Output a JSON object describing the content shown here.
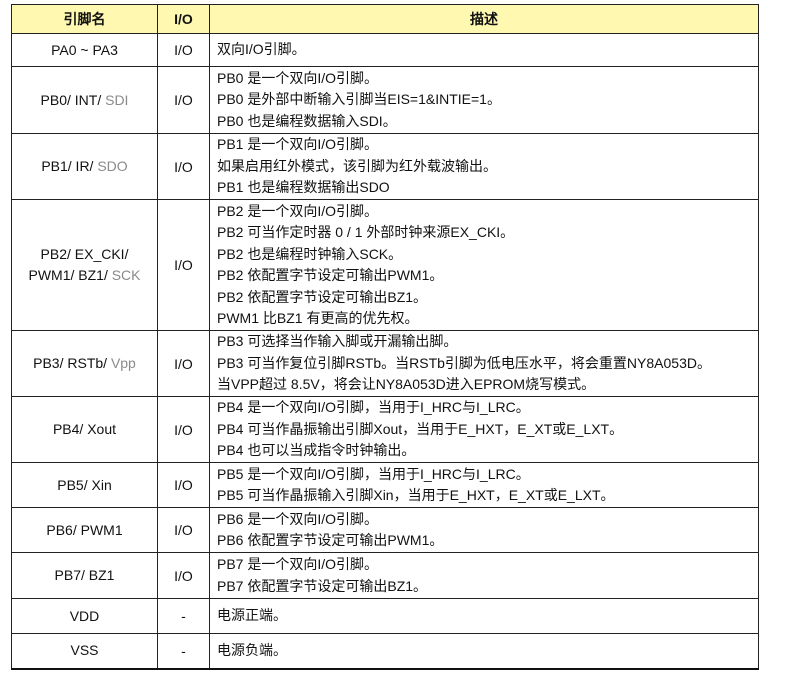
{
  "header": {
    "pin": "引脚名",
    "io": "I/O",
    "desc": "描述"
  },
  "rows": [
    {
      "pin": [
        {
          "t": "PA0 ~ PA3",
          "gray": false
        }
      ],
      "io": "I/O",
      "desc": [
        "双向I/O引脚。"
      ]
    },
    {
      "pin": [
        {
          "t": "PB0/ INT/ ",
          "gray": false
        },
        {
          "t": "SDI",
          "gray": true
        }
      ],
      "io": "I/O",
      "desc": [
        "PB0 是一个双向I/O引脚。",
        "PB0 是外部中断输入引脚当EIS=1&INTIE=1。",
        "PB0 也是编程数据输入SDI。"
      ]
    },
    {
      "pin": [
        {
          "t": "PB1/ IR/ ",
          "gray": false
        },
        {
          "t": "SDO",
          "gray": true
        }
      ],
      "io": "I/O",
      "desc": [
        "PB1 是一个双向I/O引脚。",
        "如果启用红外模式，该引脚为红外载波输出。",
        "PB1 也是编程数据输出SDO"
      ]
    },
    {
      "pin": [
        {
          "t": "PB2/ EX_CKI/",
          "gray": false,
          "br": true
        },
        {
          "t": "PWM1/ BZ1/ ",
          "gray": false
        },
        {
          "t": "SCK",
          "gray": true
        }
      ],
      "io": "I/O",
      "desc": [
        "PB2 是一个双向I/O引脚。",
        "PB2 可当作定时器 0 / 1 外部时钟来源EX_CKI。",
        "PB2 也是编程时钟输入SCK。",
        "PB2 依配置字节设定可输出PWM1。",
        "PB2 依配置字节设定可输出BZ1。",
        "PWM1 比BZ1 有更高的优先权。"
      ]
    },
    {
      "pin": [
        {
          "t": "PB3/ RSTb/ ",
          "gray": false
        },
        {
          "t": "Vpp",
          "gray": true
        }
      ],
      "io": "I/O",
      "desc": [
        "PB3 可选择当作输入脚或开漏输出脚。",
        "PB3 可当作复位引脚RSTb。当RSTb引脚为低电压水平，将会重置NY8A053D。",
        "当VPP超过 8.5V，将会让NY8A053D进入EPROM烧写模式。"
      ]
    },
    {
      "pin": [
        {
          "t": "PB4/ Xout",
          "gray": false
        }
      ],
      "io": "I/O",
      "desc": [
        "PB4 是一个双向I/O引脚，当用于I_HRC与I_LRC。",
        "PB4 可当作晶振输出引脚Xout，当用于E_HXT，E_XT或E_LXT。",
        "PB4 也可以当成指令时钟输出。"
      ]
    },
    {
      "pin": [
        {
          "t": "PB5/ Xin",
          "gray": false
        }
      ],
      "io": "I/O",
      "desc": [
        "PB5 是一个双向I/O引脚，当用于I_HRC与I_LRC。",
        "PB5 可当作晶振输入引脚Xin，当用于E_HXT，E_XT或E_LXT。"
      ]
    },
    {
      "pin": [
        {
          "t": "PB6/ PWM1",
          "gray": false
        }
      ],
      "io": "I/O",
      "desc": [
        "PB6 是一个双向I/O引脚。",
        "PB6 依配置字节设定可输出PWM1。"
      ]
    },
    {
      "pin": [
        {
          "t": "PB7/ BZ1",
          "gray": false
        }
      ],
      "io": "I/O",
      "desc": [
        "PB7 是一个双向I/O引脚。",
        "PB7 依配置字节设定可输出BZ1。"
      ]
    },
    {
      "pin": [
        {
          "t": "VDD",
          "gray": false
        }
      ],
      "io": "-",
      "desc": [
        "电源正端。"
      ]
    },
    {
      "pin": [
        {
          "t": "VSS",
          "gray": false
        }
      ],
      "io": "-",
      "desc": [
        "电源负端。"
      ]
    }
  ],
  "colors": {
    "header_bg": "#fff8b0",
    "secondary_function": "#8a8a8a"
  }
}
